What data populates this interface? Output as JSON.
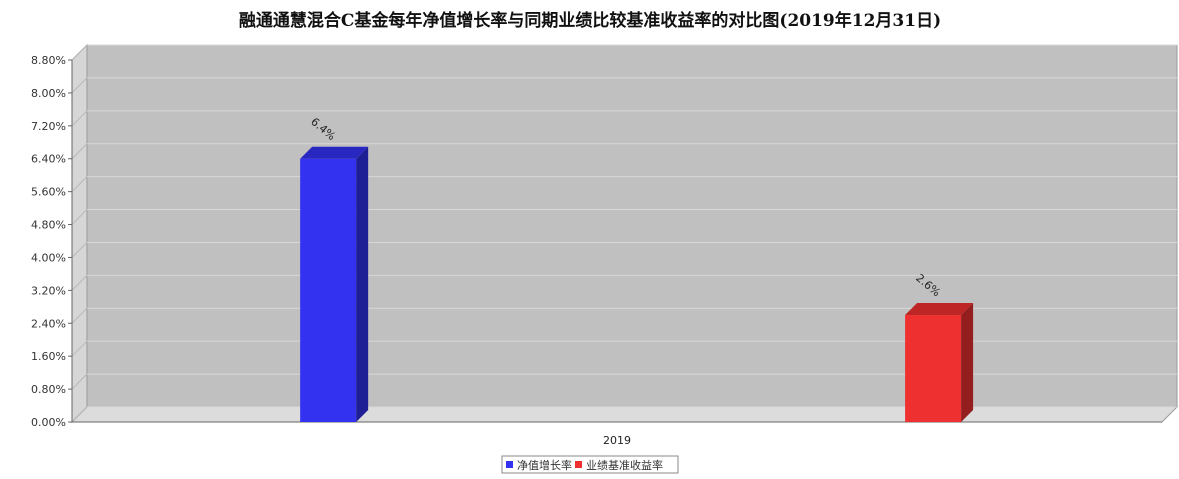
{
  "chart_data": {
    "type": "bar",
    "title": "融通通慧混合C基金每年净值增长率与同期业绩比较基准收益率的对比图(2019年12月31日)",
    "categories": [
      "2019"
    ],
    "series": [
      {
        "name": "净值增长率",
        "values": [
          6.4
        ],
        "color": "#3232F0",
        "data_label": "6.4%"
      },
      {
        "name": "业绩基准收益率",
        "values": [
          2.6
        ],
        "color": "#EE3030",
        "data_label": "2.6%"
      }
    ],
    "xlabel": "",
    "ylabel": "",
    "ylim": [
      0,
      8.8
    ],
    "y_ticks": [
      "0.00%",
      "0.80%",
      "1.60%",
      "2.40%",
      "3.20%",
      "4.00%",
      "4.80%",
      "5.60%",
      "6.40%",
      "7.20%",
      "8.00%",
      "8.80%"
    ],
    "grid": true,
    "legend_position": "bottom",
    "plot_background": "#C0C0C0"
  }
}
